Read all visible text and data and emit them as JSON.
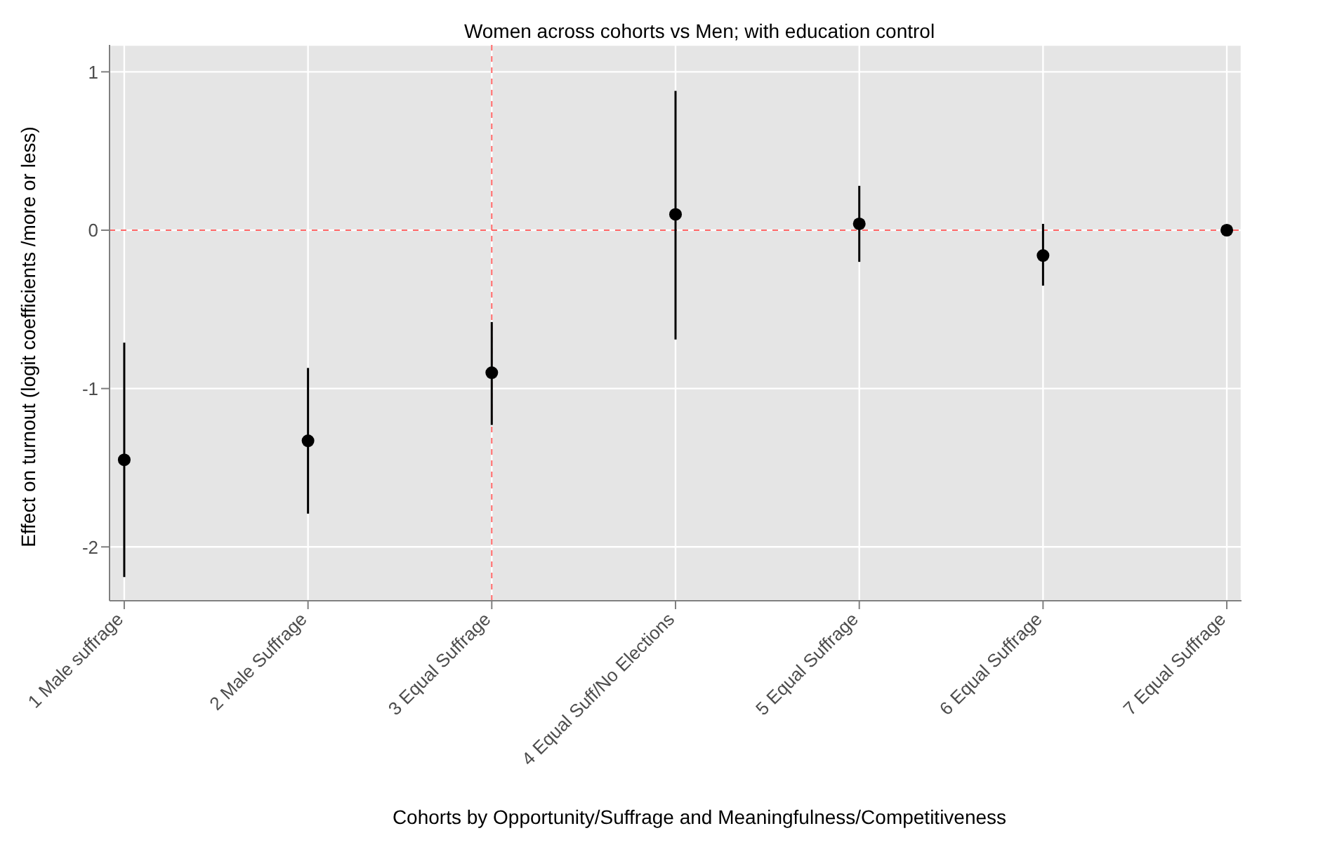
{
  "chart_data": {
    "type": "scatter",
    "title": "Women across cohorts vs Men; with education control",
    "xlabel": "Cohorts by Opportunity/Suffrage and Meaningfulness/Competitiveness",
    "ylabel": "Effect on turnout (logit coefficients /more or less)",
    "categories": [
      "1 Male suffrage",
      "2 Male Suffrage",
      "3 Equal Suffrage",
      "4 Equal Suff/No Elections",
      "5 Equal Suffrage",
      "6 Equal Suffrage",
      "7 Equal Suffrage"
    ],
    "values": [
      -1.45,
      -1.33,
      -0.9,
      0.1,
      0.04,
      -0.16,
      0
    ],
    "errors": [
      [
        -2.19,
        -0.71
      ],
      [
        -1.79,
        -0.87
      ],
      [
        -1.23,
        -0.58
      ],
      [
        -0.69,
        0.88
      ],
      [
        -0.2,
        0.28
      ],
      [
        -0.35,
        0.04
      ],
      null
    ],
    "color": "#000000",
    "marker": "circle",
    "ylim": [
      -2.34,
      1.17
    ],
    "yticks": [
      -2,
      -1,
      0,
      1
    ],
    "grid": true,
    "ref_lines": [
      {
        "axis": "y",
        "value": 0,
        "color": "#ff6666",
        "line_style": "dashed"
      },
      {
        "axis": "x",
        "value": "3 Equal Suffrage",
        "color": "#ff6666",
        "line_style": "dashed"
      }
    ]
  }
}
